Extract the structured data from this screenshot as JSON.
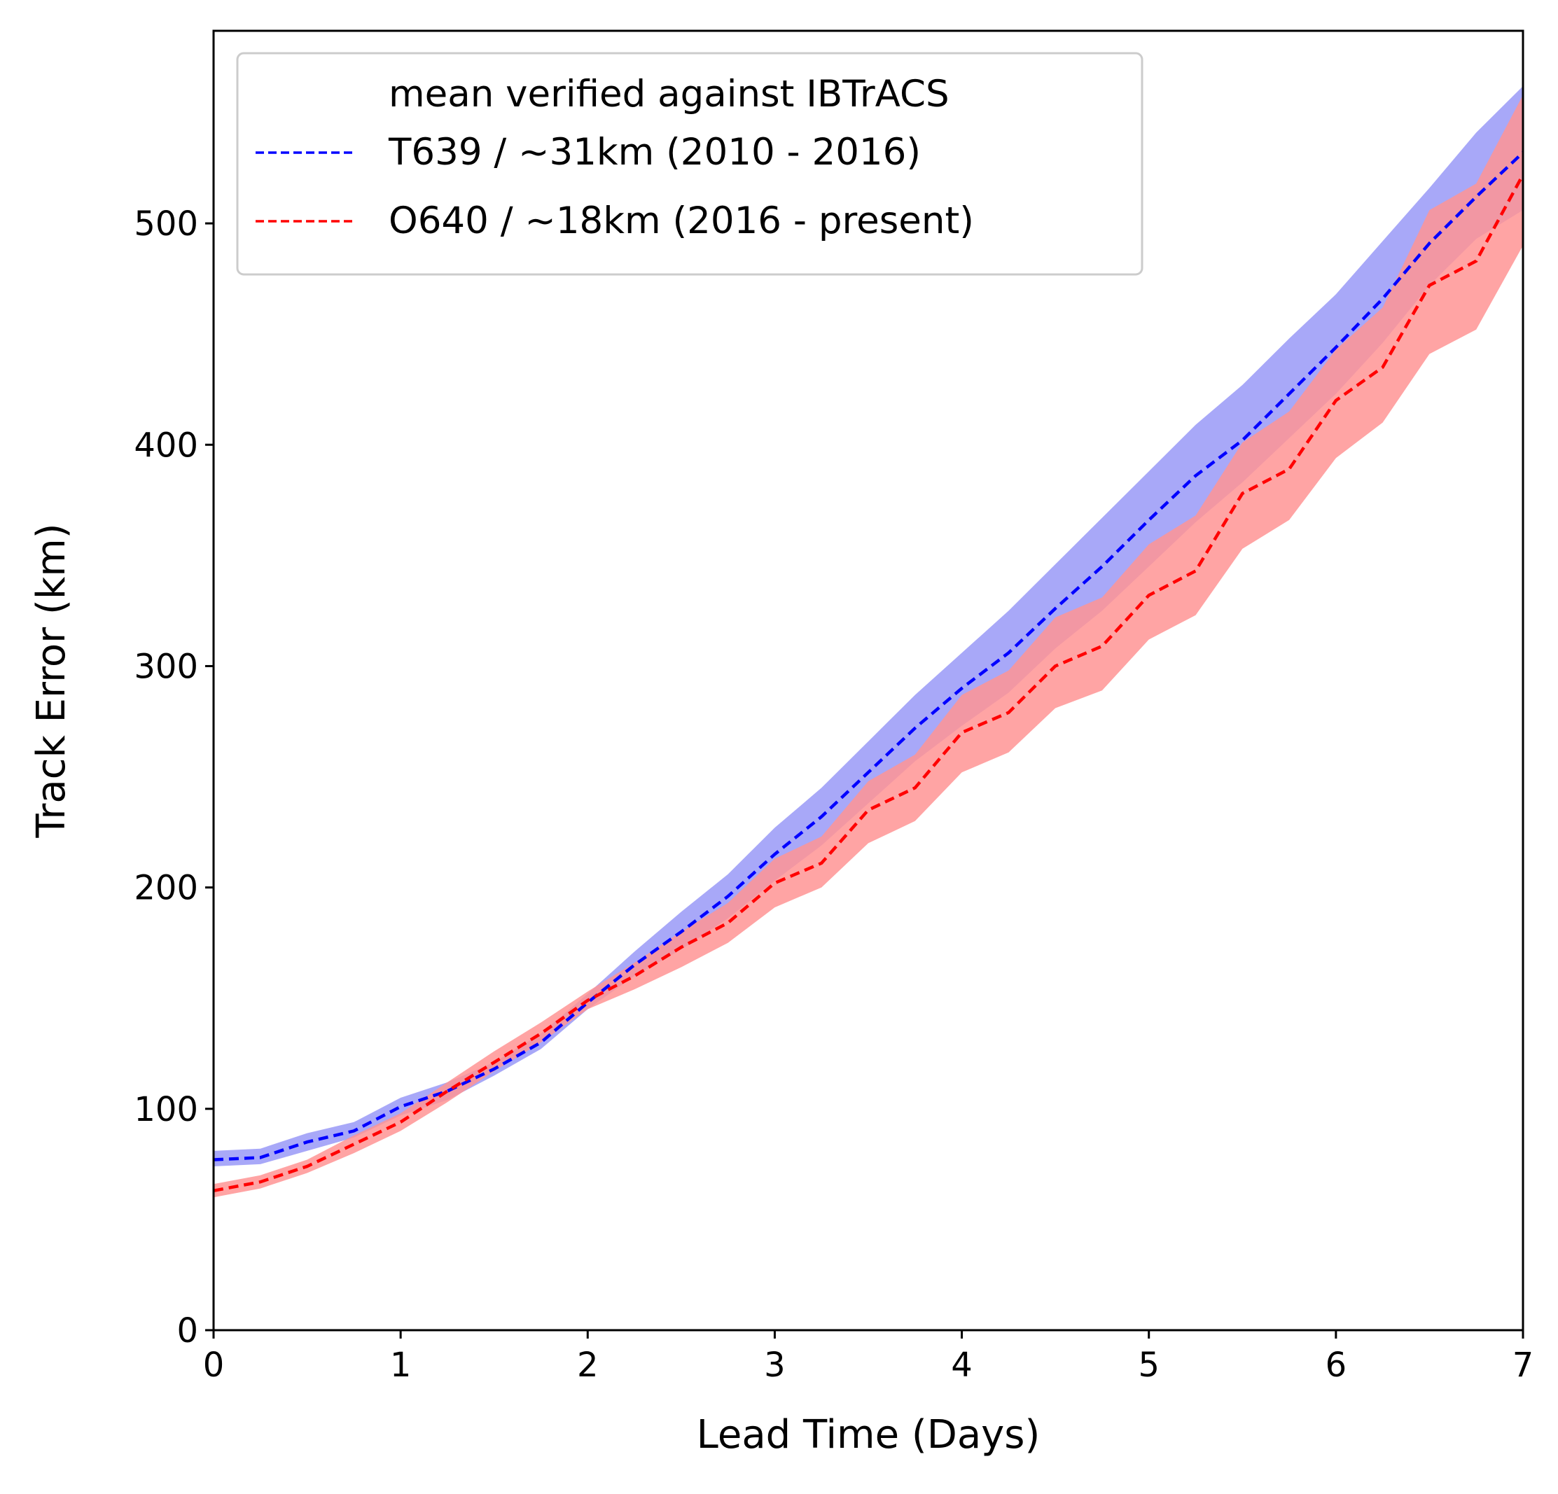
{
  "chart_data": {
    "type": "line",
    "xlabel": "Lead Time (Days)",
    "ylabel": "Track Error (km)",
    "xlim": [
      0,
      7
    ],
    "ylim": [
      0,
      587
    ],
    "xticks": [
      "0",
      "1",
      "2",
      "3",
      "4",
      "5",
      "6",
      "7"
    ],
    "yticks": [
      "0",
      "100",
      "200",
      "300",
      "400",
      "500"
    ],
    "grid": false,
    "legend": {
      "placement": "top-left",
      "title": "mean verified against IBTrACS"
    },
    "x": [
      0,
      0.25,
      0.5,
      0.75,
      1,
      1.25,
      1.5,
      1.75,
      2,
      2.25,
      2.5,
      2.75,
      3,
      3.25,
      3.5,
      3.75,
      4,
      4.25,
      4.5,
      4.75,
      5,
      5.25,
      5.5,
      5.75,
      6,
      6.25,
      6.5,
      6.75,
      7
    ],
    "series": [
      {
        "name": "T639 / ~31km (2010 - 2016)",
        "color": "#0000ff",
        "band_color": "#9999f7",
        "line_style": "dashed",
        "values": [
          77,
          78,
          85,
          90,
          101,
          108,
          118,
          130,
          148,
          165,
          180,
          196,
          215,
          232,
          252,
          272,
          290,
          306,
          326,
          345,
          366,
          386,
          402,
          423,
          444,
          466,
          491,
          512,
          532
        ],
        "lower": [
          74,
          75,
          81,
          87,
          97,
          104,
          115,
          127,
          145,
          160,
          172,
          186,
          203,
          219,
          238,
          257,
          273,
          288,
          308,
          325,
          345,
          365,
          383,
          403,
          423,
          446,
          472,
          493,
          506
        ],
        "upper": [
          81,
          82,
          89,
          94,
          105,
          112,
          121,
          134,
          152,
          171,
          189,
          206,
          227,
          245,
          266,
          287,
          306,
          325,
          346,
          367,
          388,
          409,
          427,
          448,
          468,
          492,
          516,
          541,
          562
        ]
      },
      {
        "name": "O640 / ~18km (2016 - present)",
        "color": "#ff0000",
        "band_color": "#ff9494",
        "line_style": "dashed",
        "values": [
          63,
          67,
          74,
          84,
          94,
          108,
          121,
          134,
          149,
          160,
          173,
          184,
          202,
          211,
          235,
          245,
          270,
          279,
          300,
          309,
          332,
          343,
          378,
          389,
          420,
          435,
          472,
          483,
          522
        ],
        "lower": [
          60,
          64,
          71,
          80,
          90,
          103,
          117,
          130,
          145,
          154,
          164,
          175,
          191,
          200,
          220,
          230,
          252,
          261,
          281,
          289,
          312,
          323,
          353,
          366,
          394,
          410,
          441,
          452,
          490
        ],
        "upper": [
          66,
          70,
          77,
          88,
          98,
          112,
          126,
          139,
          153,
          166,
          180,
          193,
          213,
          223,
          248,
          260,
          287,
          298,
          322,
          331,
          355,
          368,
          401,
          415,
          443,
          462,
          506,
          518,
          558
        ]
      }
    ]
  }
}
